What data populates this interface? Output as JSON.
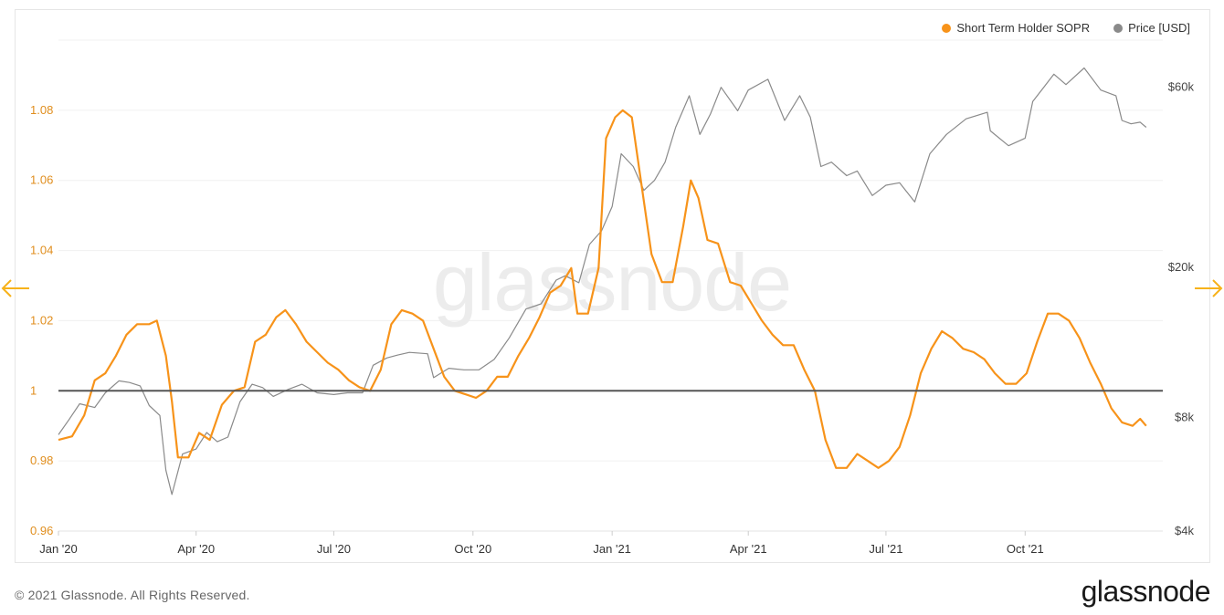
{
  "legend": {
    "sopr_label": "Short Term Holder SOPR",
    "price_label": "Price [USD]"
  },
  "watermark": "glassnode",
  "footer": {
    "copyright": "© 2021 Glassnode. All Rights Reserved.",
    "logo": "glassnode"
  },
  "colors": {
    "sopr": "#f7931a",
    "price": "#8a8a8a",
    "baseline": "#555555",
    "grid": "#f0f0f0",
    "left_axis_text": "#e08e1e",
    "right_axis_text": "#444444"
  },
  "chart_data": {
    "type": "line",
    "title": "",
    "grid": true,
    "legend_position": "top-right",
    "x_ticks": [
      "Jan '20",
      "Apr '20",
      "Jul '20",
      "Oct '20",
      "Jan '21",
      "Apr '21",
      "Jul '21",
      "Oct '21"
    ],
    "x_tick_dates": [
      "2020-01-01",
      "2020-04-01",
      "2020-07-01",
      "2020-10-01",
      "2021-01-01",
      "2021-04-01",
      "2021-07-01",
      "2021-10-01"
    ],
    "x_range": [
      "2020-01-01",
      "2021-12-31"
    ],
    "left_axis": {
      "ticks": [
        "0.96",
        "0.98",
        "1",
        "1.02",
        "1.04",
        "1.06",
        "1.08"
      ],
      "tick_values": [
        0.96,
        0.98,
        1.0,
        1.02,
        1.04,
        1.06,
        1.08
      ],
      "range": [
        0.96,
        1.1
      ]
    },
    "right_axis": {
      "scale": "log",
      "ticks": [
        "$4k",
        "$8k",
        "$20k",
        "$60k"
      ],
      "tick_values": [
        4000,
        8000,
        20000,
        60000
      ],
      "range": [
        4000,
        80000
      ]
    },
    "baseline": 1.0,
    "series": [
      {
        "name": "Short Term Holder SOPR",
        "axis": "left",
        "points": [
          [
            "2020-01-01",
            0.986
          ],
          [
            "2020-01-10",
            0.987
          ],
          [
            "2020-01-18",
            0.993
          ],
          [
            "2020-01-25",
            1.003
          ],
          [
            "2020-02-01",
            1.005
          ],
          [
            "2020-02-08",
            1.01
          ],
          [
            "2020-02-15",
            1.016
          ],
          [
            "2020-02-22",
            1.019
          ],
          [
            "2020-03-01",
            1.019
          ],
          [
            "2020-03-06",
            1.02
          ],
          [
            "2020-03-12",
            1.01
          ],
          [
            "2020-03-16",
            0.997
          ],
          [
            "2020-03-20",
            0.981
          ],
          [
            "2020-03-27",
            0.981
          ],
          [
            "2020-04-03",
            0.988
          ],
          [
            "2020-04-10",
            0.986
          ],
          [
            "2020-04-18",
            0.996
          ],
          [
            "2020-04-26",
            1.0
          ],
          [
            "2020-05-03",
            1.001
          ],
          [
            "2020-05-10",
            1.014
          ],
          [
            "2020-05-17",
            1.016
          ],
          [
            "2020-05-24",
            1.021
          ],
          [
            "2020-05-30",
            1.023
          ],
          [
            "2020-06-06",
            1.019
          ],
          [
            "2020-06-13",
            1.014
          ],
          [
            "2020-06-20",
            1.011
          ],
          [
            "2020-06-27",
            1.008
          ],
          [
            "2020-07-04",
            1.006
          ],
          [
            "2020-07-11",
            1.003
          ],
          [
            "2020-07-18",
            1.001
          ],
          [
            "2020-07-25",
            1.0
          ],
          [
            "2020-08-01",
            1.006
          ],
          [
            "2020-08-08",
            1.019
          ],
          [
            "2020-08-15",
            1.023
          ],
          [
            "2020-08-22",
            1.022
          ],
          [
            "2020-08-29",
            1.02
          ],
          [
            "2020-09-05",
            1.012
          ],
          [
            "2020-09-12",
            1.004
          ],
          [
            "2020-09-19",
            1.0
          ],
          [
            "2020-09-26",
            0.999
          ],
          [
            "2020-10-03",
            0.998
          ],
          [
            "2020-10-10",
            1.0
          ],
          [
            "2020-10-17",
            1.004
          ],
          [
            "2020-10-24",
            1.004
          ],
          [
            "2020-10-31",
            1.01
          ],
          [
            "2020-11-07",
            1.015
          ],
          [
            "2020-11-14",
            1.021
          ],
          [
            "2020-11-21",
            1.028
          ],
          [
            "2020-11-28",
            1.03
          ],
          [
            "2020-12-05",
            1.035
          ],
          [
            "2020-12-09",
            1.022
          ],
          [
            "2020-12-16",
            1.022
          ],
          [
            "2020-12-23",
            1.035
          ],
          [
            "2020-12-28",
            1.072
          ],
          [
            "2021-01-03",
            1.078
          ],
          [
            "2021-01-08",
            1.08
          ],
          [
            "2021-01-14",
            1.078
          ],
          [
            "2021-01-20",
            1.06
          ],
          [
            "2021-01-27",
            1.039
          ],
          [
            "2021-02-03",
            1.031
          ],
          [
            "2021-02-10",
            1.031
          ],
          [
            "2021-02-17",
            1.047
          ],
          [
            "2021-02-22",
            1.06
          ],
          [
            "2021-02-27",
            1.055
          ],
          [
            "2021-03-05",
            1.043
          ],
          [
            "2021-03-12",
            1.042
          ],
          [
            "2021-03-20",
            1.031
          ],
          [
            "2021-03-27",
            1.03
          ],
          [
            "2021-04-03",
            1.025
          ],
          [
            "2021-04-10",
            1.02
          ],
          [
            "2021-04-17",
            1.016
          ],
          [
            "2021-04-24",
            1.013
          ],
          [
            "2021-05-01",
            1.013
          ],
          [
            "2021-05-08",
            1.006
          ],
          [
            "2021-05-15",
            1.0
          ],
          [
            "2021-05-22",
            0.986
          ],
          [
            "2021-05-29",
            0.978
          ],
          [
            "2021-06-05",
            0.978
          ],
          [
            "2021-06-12",
            0.982
          ],
          [
            "2021-06-19",
            0.98
          ],
          [
            "2021-06-26",
            0.978
          ],
          [
            "2021-07-03",
            0.98
          ],
          [
            "2021-07-10",
            0.984
          ],
          [
            "2021-07-17",
            0.993
          ],
          [
            "2021-07-24",
            1.005
          ],
          [
            "2021-07-31",
            1.012
          ],
          [
            "2021-08-07",
            1.017
          ],
          [
            "2021-08-14",
            1.015
          ],
          [
            "2021-08-21",
            1.012
          ],
          [
            "2021-08-28",
            1.011
          ],
          [
            "2021-09-04",
            1.009
          ],
          [
            "2021-09-11",
            1.005
          ],
          [
            "2021-09-18",
            1.002
          ],
          [
            "2021-09-25",
            1.002
          ],
          [
            "2021-10-02",
            1.005
          ],
          [
            "2021-10-09",
            1.014
          ],
          [
            "2021-10-16",
            1.022
          ],
          [
            "2021-10-23",
            1.022
          ],
          [
            "2021-10-30",
            1.02
          ],
          [
            "2021-11-06",
            1.015
          ],
          [
            "2021-11-13",
            1.008
          ],
          [
            "2021-11-20",
            1.002
          ],
          [
            "2021-11-27",
            0.995
          ],
          [
            "2021-12-04",
            0.991
          ],
          [
            "2021-12-11",
            0.99
          ],
          [
            "2021-12-16",
            0.992
          ],
          [
            "2021-12-20",
            0.99
          ]
        ]
      },
      {
        "name": "Price [USD]",
        "axis": "right",
        "points": [
          [
            "2020-01-01",
            7200
          ],
          [
            "2020-01-08",
            7900
          ],
          [
            "2020-01-15",
            8700
          ],
          [
            "2020-01-25",
            8500
          ],
          [
            "2020-02-01",
            9300
          ],
          [
            "2020-02-10",
            10000
          ],
          [
            "2020-02-17",
            9900
          ],
          [
            "2020-02-24",
            9700
          ],
          [
            "2020-03-01",
            8600
          ],
          [
            "2020-03-08",
            8100
          ],
          [
            "2020-03-12",
            5800
          ],
          [
            "2020-03-16",
            5000
          ],
          [
            "2020-03-23",
            6400
          ],
          [
            "2020-04-01",
            6600
          ],
          [
            "2020-04-08",
            7300
          ],
          [
            "2020-04-15",
            6900
          ],
          [
            "2020-04-22",
            7100
          ],
          [
            "2020-04-30",
            8800
          ],
          [
            "2020-05-08",
            9800
          ],
          [
            "2020-05-15",
            9600
          ],
          [
            "2020-05-22",
            9100
          ],
          [
            "2020-06-01",
            9500
          ],
          [
            "2020-06-10",
            9800
          ],
          [
            "2020-06-20",
            9300
          ],
          [
            "2020-07-01",
            9200
          ],
          [
            "2020-07-10",
            9300
          ],
          [
            "2020-07-20",
            9300
          ],
          [
            "2020-07-27",
            11000
          ],
          [
            "2020-08-05",
            11500
          ],
          [
            "2020-08-12",
            11700
          ],
          [
            "2020-08-20",
            11900
          ],
          [
            "2020-09-01",
            11800
          ],
          [
            "2020-09-05",
            10200
          ],
          [
            "2020-09-15",
            10800
          ],
          [
            "2020-09-25",
            10700
          ],
          [
            "2020-10-05",
            10700
          ],
          [
            "2020-10-15",
            11400
          ],
          [
            "2020-10-25",
            13000
          ],
          [
            "2020-11-05",
            15500
          ],
          [
            "2020-11-15",
            16000
          ],
          [
            "2020-11-25",
            18500
          ],
          [
            "2020-12-01",
            19000
          ],
          [
            "2020-12-10",
            18200
          ],
          [
            "2020-12-17",
            23000
          ],
          [
            "2020-12-25",
            25000
          ],
          [
            "2021-01-01",
            29000
          ],
          [
            "2021-01-07",
            40000
          ],
          [
            "2021-01-15",
            37000
          ],
          [
            "2021-01-22",
            32000
          ],
          [
            "2021-01-29",
            34000
          ],
          [
            "2021-02-05",
            38000
          ],
          [
            "2021-02-12",
            47000
          ],
          [
            "2021-02-21",
            57000
          ],
          [
            "2021-02-28",
            45000
          ],
          [
            "2021-03-07",
            51000
          ],
          [
            "2021-03-14",
            60000
          ],
          [
            "2021-03-25",
            52000
          ],
          [
            "2021-04-01",
            59000
          ],
          [
            "2021-04-14",
            63000
          ],
          [
            "2021-04-25",
            49000
          ],
          [
            "2021-05-05",
            57000
          ],
          [
            "2021-05-12",
            50000
          ],
          [
            "2021-05-19",
            37000
          ],
          [
            "2021-05-26",
            38000
          ],
          [
            "2021-06-05",
            35000
          ],
          [
            "2021-06-12",
            36000
          ],
          [
            "2021-06-22",
            31000
          ],
          [
            "2021-07-01",
            33000
          ],
          [
            "2021-07-10",
            33500
          ],
          [
            "2021-07-20",
            29800
          ],
          [
            "2021-07-30",
            40000
          ],
          [
            "2021-08-10",
            45000
          ],
          [
            "2021-08-23",
            49500
          ],
          [
            "2021-09-06",
            51500
          ],
          [
            "2021-09-08",
            46000
          ],
          [
            "2021-09-20",
            42000
          ],
          [
            "2021-10-01",
            44000
          ],
          [
            "2021-10-06",
            55000
          ],
          [
            "2021-10-20",
            65000
          ],
          [
            "2021-10-28",
            61000
          ],
          [
            "2021-11-09",
            67500
          ],
          [
            "2021-11-20",
            59000
          ],
          [
            "2021-11-30",
            57000
          ],
          [
            "2021-12-04",
            49000
          ],
          [
            "2021-12-10",
            48000
          ],
          [
            "2021-12-16",
            48500
          ],
          [
            "2021-12-20",
            47000
          ]
        ]
      }
    ]
  }
}
